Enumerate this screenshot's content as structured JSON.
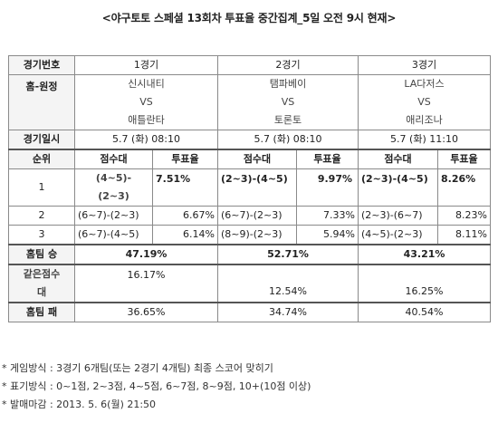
{
  "title": "<야구토토 스페셜 13회차 투표율 중간집계_5일 오전 9시 현재>",
  "labels": {
    "game_no": "경기번호",
    "home_away": "홈-원정",
    "game_date": "경기일시",
    "rank": "순위",
    "score_col": "점수대",
    "vote_col": "투표율",
    "home_win": "홈팀 승",
    "same_score_1": "같은점수",
    "same_score_2": "대",
    "home_loss": "홈팀 패",
    "vs": "VS"
  },
  "games": [
    {
      "no": "1경기",
      "home": "신시내티",
      "away": "애틀란타",
      "date": "5.7 (화) 08:10",
      "home_win": "47.19%",
      "same": "16.17%",
      "home_loss": "36.65%"
    },
    {
      "no": "2경기",
      "home": "탬파베이",
      "away": "토론토",
      "date": "5.7 (화) 08:10",
      "home_win": "52.71%",
      "same": "12.54%",
      "home_loss": "34.74%"
    },
    {
      "no": "3경기",
      "home": "LA다저스",
      "away": "애리조나",
      "date": "5.7 (화) 11:10",
      "home_win": "43.21%",
      "same": "16.25%",
      "home_loss": "40.54%"
    }
  ],
  "ranks": [
    {
      "rank": "1",
      "g1_score_a": "(4~5)-",
      "g1_score_b": "(2~3)",
      "g1_vote": "7.51%",
      "g2_score": "(2~3)-(4~5)",
      "g2_vote": "9.97%",
      "g3_score": "(2~3)-(4~5)",
      "g3_vote": "8.26%"
    },
    {
      "rank": "2",
      "g1_score": "(6~7)-(2~3)",
      "g1_vote": "6.67%",
      "g2_score": "(6~7)-(2~3)",
      "g2_vote": "7.33%",
      "g3_score": "(2~3)-(6~7)",
      "g3_vote": "8.23%"
    },
    {
      "rank": "3",
      "g1_score": "(6~7)-(4~5)",
      "g1_vote": "6.14%",
      "g2_score": "(8~9)-(2~3)",
      "g2_vote": "5.94%",
      "g3_score": "(4~5)-(2~3)",
      "g3_vote": "8.11%"
    }
  ],
  "notes": [
    "* 게임방식 : 3경기 6개팀(또는 2경기 4개팀) 최종 스코어 맞히기",
    "* 표기방식 : 0~1점, 2~3점, 4~5점, 6~7점, 8~9점, 10+(10점 이상)",
    "* 발매마감 : 2013. 5. 6(월) 21:50"
  ]
}
